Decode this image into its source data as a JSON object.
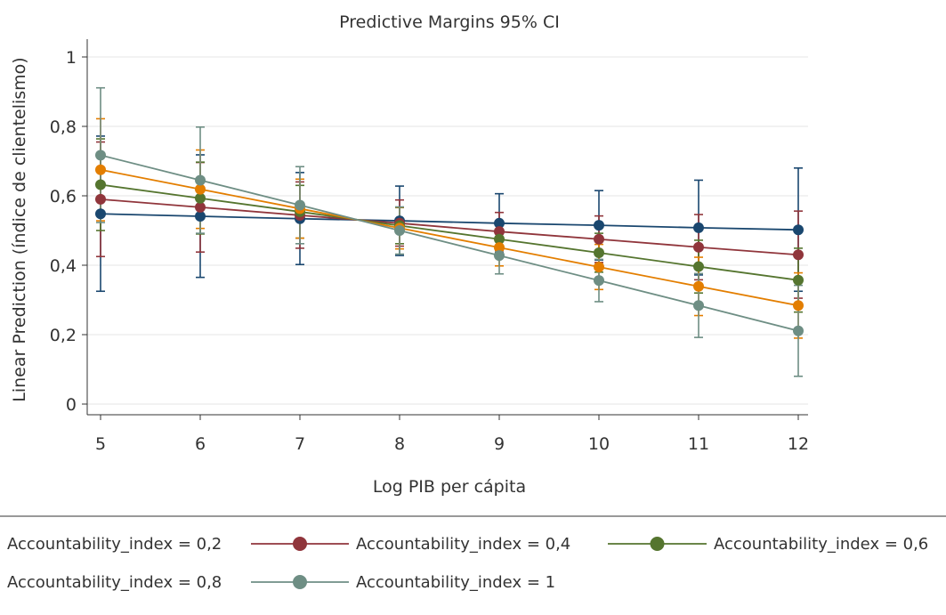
{
  "chart_data": {
    "type": "line",
    "title": "Predictive Margins 95% CI",
    "xlabel": "Log PIB per cápita",
    "ylabel": "Linear Prediction (índice de clientelismo)",
    "x": [
      5,
      6,
      7,
      8,
      9,
      10,
      11,
      12
    ],
    "xlim": [
      5,
      12
    ],
    "ylim": [
      0,
      1
    ],
    "yticks": [
      {
        "value": 0,
        "label": "0"
      },
      {
        "value": 0.2,
        "label": "0,2"
      },
      {
        "value": 0.4,
        "label": "0,4"
      },
      {
        "value": 0.6,
        "label": "0,6"
      },
      {
        "value": 0.8,
        "label": "0,8"
      },
      {
        "value": 1,
        "label": "1"
      }
    ],
    "xticks": [
      "5",
      "6",
      "7",
      "8",
      "9",
      "10",
      "11",
      "12"
    ],
    "grid": true,
    "legend_position": "bottom",
    "series": [
      {
        "name": "Accountability_index = 0,2",
        "color": "#1a476f",
        "values": [
          0.548,
          0.541,
          0.534,
          0.528,
          0.521,
          0.515,
          0.508,
          0.502
        ],
        "lower": [
          0.325,
          0.365,
          0.402,
          0.428,
          0.437,
          0.415,
          0.372,
          0.325
        ],
        "upper": [
          0.772,
          0.718,
          0.667,
          0.628,
          0.606,
          0.615,
          0.645,
          0.68
        ]
      },
      {
        "name": "Accountability_index = 0,4",
        "color": "#90353b",
        "values": [
          0.59,
          0.567,
          0.544,
          0.521,
          0.497,
          0.475,
          0.452,
          0.43
        ],
        "lower": [
          0.425,
          0.438,
          0.449,
          0.455,
          0.442,
          0.408,
          0.358,
          0.305
        ],
        "upper": [
          0.755,
          0.696,
          0.64,
          0.588,
          0.552,
          0.542,
          0.546,
          0.556
        ]
      },
      {
        "name": "Accountability_index = 0,6",
        "color": "#55752f",
        "values": [
          0.632,
          0.593,
          0.554,
          0.514,
          0.475,
          0.436,
          0.396,
          0.357
        ],
        "lower": [
          0.5,
          0.49,
          0.478,
          0.462,
          0.425,
          0.38,
          0.32,
          0.265
        ],
        "upper": [
          0.764,
          0.697,
          0.63,
          0.566,
          0.525,
          0.492,
          0.472,
          0.449
        ]
      },
      {
        "name": "Accountability_index = 0,8",
        "color": "#e37e00",
        "values": [
          0.675,
          0.619,
          0.563,
          0.507,
          0.451,
          0.395,
          0.339,
          0.284
        ],
        "lower": [
          0.528,
          0.506,
          0.478,
          0.447,
          0.398,
          0.33,
          0.255,
          0.19
        ],
        "upper": [
          0.822,
          0.732,
          0.648,
          0.567,
          0.504,
          0.46,
          0.423,
          0.378
        ]
      },
      {
        "name": "Accountability_index = 1",
        "color": "#6e8e84",
        "values": [
          0.717,
          0.645,
          0.573,
          0.5,
          0.428,
          0.356,
          0.284,
          0.211
        ],
        "lower": [
          0.523,
          0.492,
          0.462,
          0.432,
          0.375,
          0.295,
          0.192,
          0.08
        ],
        "upper": [
          0.911,
          0.798,
          0.684,
          0.568,
          0.481,
          0.417,
          0.376,
          0.342
        ]
      }
    ]
  }
}
